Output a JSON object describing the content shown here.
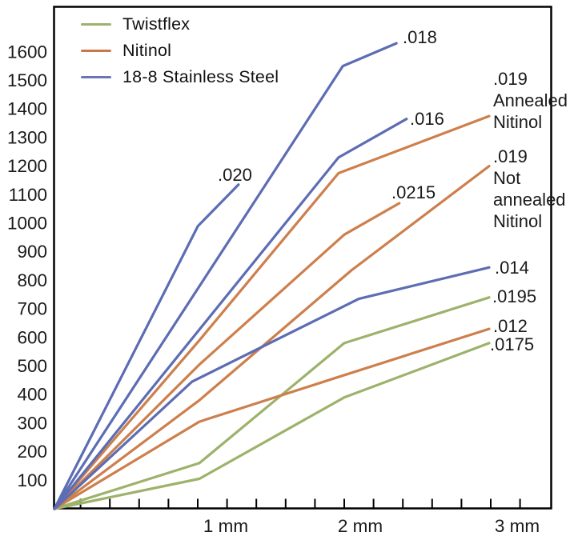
{
  "figure": {
    "background": "#ffffff",
    "border_color": "#000000",
    "text_color": "#1a1a1a"
  },
  "legend": {
    "position": "top-left-inside",
    "items": [
      {
        "label": "Twistflex",
        "color": "#9db26b"
      },
      {
        "label": "Nitinol",
        "color": "#c9784a"
      },
      {
        "label": "18-8 Stainless Steel",
        "color": "#6b76b5"
      }
    ]
  },
  "chart_data": {
    "type": "line",
    "title": "",
    "xlabel": "",
    "ylabel": "",
    "x_tick_labels": [
      "1 mm",
      "2 mm",
      "3 mm"
    ],
    "x_minor_ticks_mm": 0.2,
    "xlim_mm": [
      0,
      3.4
    ],
    "y_ticks": [
      100,
      200,
      300,
      400,
      500,
      600,
      700,
      800,
      900,
      1000,
      1100,
      1200,
      1300,
      1400,
      1500,
      1600
    ],
    "ylim": [
      0,
      1760
    ],
    "grid": false,
    "series": [
      {
        "id": "tw-0195",
        "material": "Twistflex",
        "color": "#9db26b",
        "label_lines": [
          ".0195"
        ],
        "points_mm_force": [
          [
            0,
            0
          ],
          [
            1.0,
            160
          ],
          [
            2.0,
            580
          ],
          [
            3.0,
            740
          ]
        ]
      },
      {
        "id": "tw-0175",
        "material": "Twistflex",
        "color": "#9db26b",
        "label_lines": [
          ".0175"
        ],
        "points_mm_force": [
          [
            0,
            0
          ],
          [
            1.0,
            105
          ],
          [
            2.0,
            390
          ],
          [
            3.0,
            580
          ]
        ]
      },
      {
        "id": "nit-012",
        "material": "Nitinol",
        "color": "#cd7f4c",
        "label_lines": [
          ".012"
        ],
        "points_mm_force": [
          [
            0,
            0
          ],
          [
            1.0,
            305
          ],
          [
            1.95,
            460
          ],
          [
            3.0,
            630
          ]
        ]
      },
      {
        "id": "nit-0215",
        "material": "Nitinol",
        "color": "#cd7f4c",
        "label_lines": [
          ".0215"
        ],
        "points_mm_force": [
          [
            0,
            0
          ],
          [
            1.0,
            505
          ],
          [
            2.0,
            960
          ],
          [
            2.38,
            1070
          ]
        ]
      },
      {
        "id": "nit-019-not",
        "material": "Nitinol",
        "color": "#cd7f4c",
        "label_lines": [
          ".019",
          "Not",
          "annealed",
          "Nitinol"
        ],
        "points_mm_force": [
          [
            0,
            0
          ],
          [
            1.0,
            380
          ],
          [
            2.05,
            835
          ],
          [
            3.0,
            1200
          ]
        ]
      },
      {
        "id": "nit-019-ann",
        "material": "Nitinol",
        "color": "#cd7f4c",
        "label_lines": [
          ".019",
          "Annealed",
          "Nitinol"
        ],
        "points_mm_force": [
          [
            0,
            0
          ],
          [
            1.0,
            590
          ],
          [
            1.96,
            1175
          ],
          [
            3.0,
            1375
          ]
        ]
      },
      {
        "id": "ss-014",
        "material": "18-8 Stainless Steel",
        "color": "#5d6db3",
        "label_lines": [
          ".014"
        ],
        "points_mm_force": [
          [
            0,
            0
          ],
          [
            0.95,
            445
          ],
          [
            2.1,
            735
          ],
          [
            3.0,
            845
          ]
        ]
      },
      {
        "id": "ss-016",
        "material": "18-8 Stainless Steel",
        "color": "#5d6db3",
        "label_lines": [
          ".016"
        ],
        "points_mm_force": [
          [
            0,
            0
          ],
          [
            1.96,
            1230
          ],
          [
            2.43,
            1365
          ]
        ]
      },
      {
        "id": "ss-018",
        "material": "18-8 Stainless Steel",
        "color": "#5d6db3",
        "label_lines": [
          ".018"
        ],
        "points_mm_force": [
          [
            0,
            0
          ],
          [
            1.99,
            1550
          ],
          [
            2.36,
            1630
          ]
        ]
      },
      {
        "id": "ss-020",
        "material": "18-8 Stainless Steel",
        "color": "#5d6db3",
        "label_lines": [
          ".020"
        ],
        "points_mm_force": [
          [
            0,
            0
          ],
          [
            0.99,
            990
          ],
          [
            1.27,
            1135
          ]
        ]
      }
    ]
  }
}
